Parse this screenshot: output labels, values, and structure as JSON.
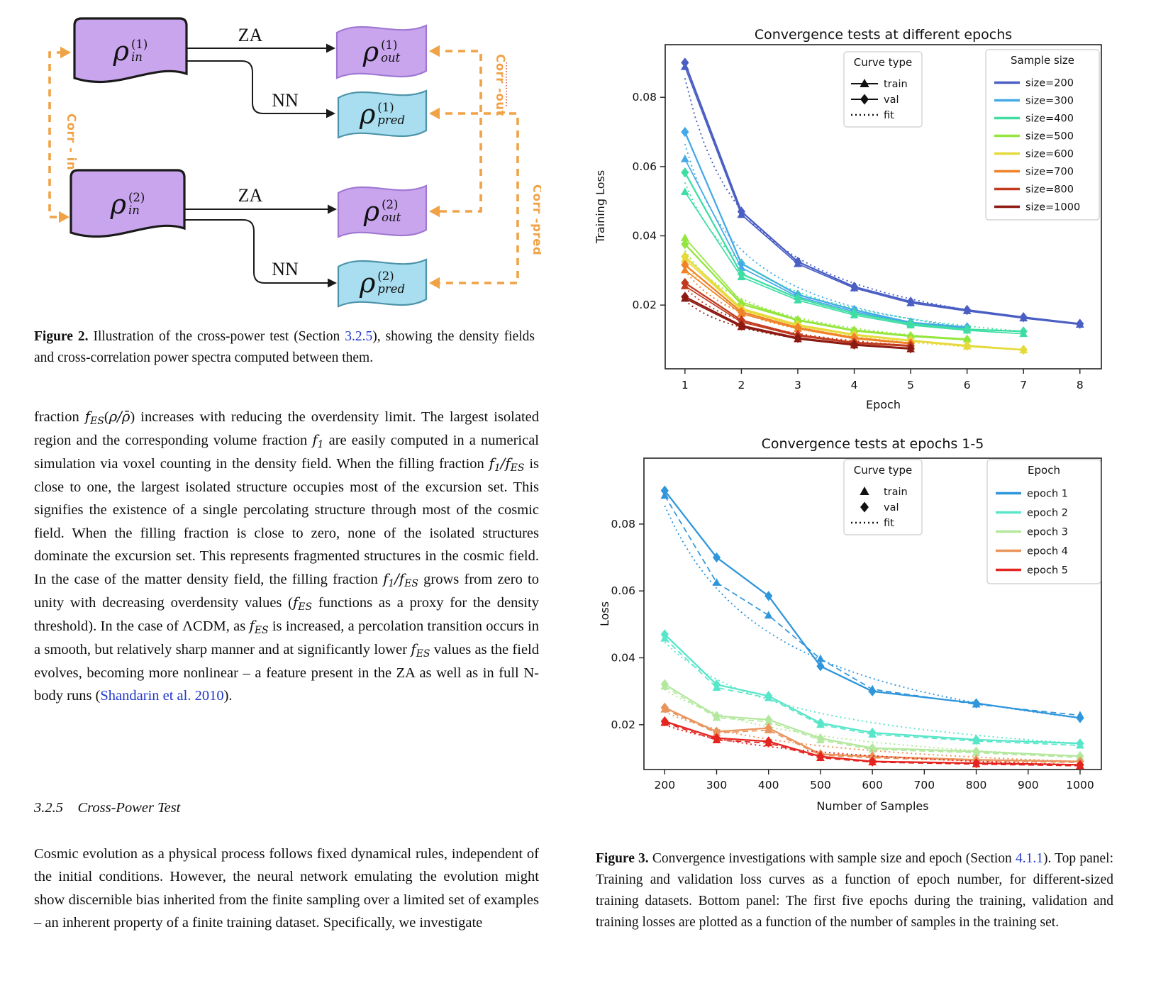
{
  "diagram": {
    "nodes": [
      {
        "id": "in1",
        "base": "ρ",
        "sub": "in",
        "sup": "(1)",
        "kind": "purple-dark"
      },
      {
        "id": "out1",
        "base": "ρ",
        "sub": "out",
        "sup": "(1)",
        "kind": "purple"
      },
      {
        "id": "pred1",
        "base": "ρ",
        "sub": "pred",
        "sup": "(1)",
        "kind": "cyan"
      },
      {
        "id": "in2",
        "base": "ρ",
        "sub": "in",
        "sup": "(2)",
        "kind": "purple-dark"
      },
      {
        "id": "out2",
        "base": "ρ",
        "sub": "out",
        "sup": "(2)",
        "kind": "purple"
      },
      {
        "id": "pred2",
        "base": "ρ",
        "sub": "pred",
        "sup": "(2)",
        "kind": "cyan"
      }
    ],
    "edge_labels": [
      "ZA",
      "NN",
      "ZA",
      "NN"
    ],
    "corr_in": "Corr - in",
    "corr_out": "Corr -out",
    "corr_pred": "Corr -pred",
    "colors": {
      "purple_fill": "#c9a5ee",
      "purple_stroke": "#9f78d2",
      "cyan_fill": "#a8def0",
      "cyan_stroke": "#4d93aa",
      "arrow_black": "#1a1a1a",
      "orange": "#f0a246",
      "red_dots": "#cc3322"
    }
  },
  "figure2_caption_runs": [
    {
      "t": "Figure 2.",
      "b": true
    },
    {
      "t": " Illustration of the cross-power test (Section "
    },
    {
      "t": "3.2.5",
      "link": true
    },
    {
      "t": "), showing the density fields and cross-correlation power spectra computed between them."
    }
  ],
  "para1_runs": [
    {
      "t": "fraction "
    },
    {
      "t": "f",
      "i": true
    },
    {
      "t": "ES",
      "sub": true
    },
    {
      "t": "("
    },
    {
      "t": "ρ/ρ̄",
      "i": true
    },
    {
      "t": ") increases with reducing the overdensity limit. The largest isolated region and the corresponding volume fraction "
    },
    {
      "t": "f",
      "i": true
    },
    {
      "t": "1",
      "sub": true
    },
    {
      "t": " are easily computed in a numerical simulation via voxel counting in the density field. When the filling fraction "
    },
    {
      "t": "f",
      "i": true
    },
    {
      "t": "1",
      "sub": true
    },
    {
      "t": "/",
      "i": true
    },
    {
      "t": "f",
      "i": true
    },
    {
      "t": "ES",
      "sub": true
    },
    {
      "t": " is close to one, the largest isolated structure occupies most of the excursion set. This signifies the existence of a single percolating structure through most of the cosmic field. When the filling fraction is close to zero, none of the isolated structures dominate the excursion set. This represents fragmented structures in the cosmic field. In the case of the matter density field, the filling fraction "
    },
    {
      "t": "f",
      "i": true
    },
    {
      "t": "1",
      "sub": true
    },
    {
      "t": "/",
      "i": true
    },
    {
      "t": "f",
      "i": true
    },
    {
      "t": "ES",
      "sub": true
    },
    {
      "t": " grows from zero to unity with decreasing overdensity values ("
    },
    {
      "t": "f",
      "i": true
    },
    {
      "t": "ES",
      "sub": true
    },
    {
      "t": " functions as a proxy for the density threshold). In the case of ΛCDM, as "
    },
    {
      "t": "f",
      "i": true
    },
    {
      "t": "ES",
      "sub": true
    },
    {
      "t": " is increased, a percolation transition occurs in a smooth, but relatively sharp manner and at significantly lower "
    },
    {
      "t": "f",
      "i": true
    },
    {
      "t": "ES",
      "sub": true
    },
    {
      "t": " values as the field evolves, becoming more nonlinear – a feature present in the ZA as well as in full N-body runs ("
    },
    {
      "t": "Shandarin et al. 2010",
      "link": true
    },
    {
      "t": ")."
    }
  ],
  "section_heading": "3.2.5  Cross-Power Test",
  "para2_runs": [
    {
      "t": "Cosmic evolution as a physical process follows fixed dynamical rules, independent of the initial conditions. However, the neural network emulating the evolution might show discernible bias inherited from the finite sampling over a limited set of examples – an inherent property of a finite training dataset. Specifically, we investigate"
    }
  ],
  "figure3_caption_runs": [
    {
      "t": "Figure 3.",
      "b": true
    },
    {
      "t": " Convergence investigations with sample size and epoch (Section "
    },
    {
      "t": "4.1.1",
      "link": true
    },
    {
      "t": "). Top panel: Training and validation loss curves as a function of epoch number, for different-sized training datasets. Bottom panel: The first five epochs during the training, validation and training losses are plotted as a function of the number of samples in the training set."
    }
  ],
  "chart_data": [
    {
      "type": "line",
      "title": "Convergence tests at different epochs",
      "xlabel": "Epoch",
      "ylabel": "Training Loss",
      "xticks": [
        1,
        2,
        3,
        4,
        5,
        6,
        7,
        8
      ],
      "yticks": [
        0.02,
        0.04,
        0.06,
        0.08
      ],
      "xlim": [
        0.65,
        8.38
      ],
      "ylim": [
        0.0016,
        0.0952
      ],
      "grid": false,
      "train_dashed": false,
      "legend_curve_title": "Curve type",
      "legend_curve_items": [
        {
          "label": "train",
          "swatch": "marker-line",
          "marker": "triangle"
        },
        {
          "label": "val",
          "swatch": "marker-line",
          "marker": "diamond"
        },
        {
          "label": "fit",
          "swatch": "dotted"
        }
      ],
      "legend_group_title": "Sample size",
      "series": [
        {
          "name": "size=200",
          "color": "#4a5ec4",
          "x": [
            1,
            2,
            3,
            4,
            5,
            6,
            7,
            8
          ],
          "val": [
            0.09,
            0.047,
            0.0325,
            0.0253,
            0.021,
            0.0186,
            0.0165,
            0.0146
          ],
          "train": [
            0.0888,
            0.0461,
            0.0319,
            0.0249,
            0.0206,
            0.0183,
            0.0162,
            0.0144
          ]
        },
        {
          "name": "size=300",
          "color": "#45a9e8",
          "x": [
            1,
            2,
            3,
            4,
            5,
            6
          ],
          "val": [
            0.07,
            0.032,
            0.023,
            0.0186,
            0.015,
            0.0136
          ],
          "train": [
            0.0622,
            0.0308,
            0.0224,
            0.0181,
            0.0147,
            0.0133
          ]
        },
        {
          "name": "size=400",
          "color": "#3edda4",
          "x": [
            1,
            2,
            3,
            4,
            5,
            6,
            7
          ],
          "val": [
            0.0583,
            0.029,
            0.022,
            0.0176,
            0.0146,
            0.013,
            0.0124
          ],
          "train": [
            0.0527,
            0.0281,
            0.0214,
            0.0171,
            0.0142,
            0.0127,
            0.0117
          ]
        },
        {
          "name": "size=500",
          "color": "#93e63c",
          "x": [
            1,
            2,
            3,
            4,
            5,
            6
          ],
          "val": [
            0.0376,
            0.0203,
            0.0156,
            0.0126,
            0.011,
            0.01
          ],
          "train": [
            0.0394,
            0.0209,
            0.0158,
            0.0128,
            0.0112,
            0.0102
          ]
        },
        {
          "name": "size=600",
          "color": "#e6d93a",
          "x": [
            1,
            2,
            3,
            4,
            5,
            6,
            7
          ],
          "val": [
            0.034,
            0.019,
            0.0143,
            0.0115,
            0.0098,
            0.0083,
            0.0071
          ],
          "train": [
            0.0332,
            0.0186,
            0.014,
            0.0113,
            0.0096,
            0.0081,
            0.007
          ]
        },
        {
          "name": "size=700",
          "color": "#f08228",
          "x": [
            1,
            2,
            3,
            4,
            5
          ],
          "val": [
            0.0316,
            0.018,
            0.0135,
            0.0106,
            0.009
          ],
          "train": [
            0.0301,
            0.0175,
            0.0132,
            0.0103,
            0.0088
          ]
        },
        {
          "name": "size=800",
          "color": "#c13a1e",
          "x": [
            1,
            2,
            3,
            4,
            5
          ],
          "val": [
            0.0264,
            0.0156,
            0.0114,
            0.0092,
            0.0083
          ],
          "train": [
            0.0255,
            0.0151,
            0.0111,
            0.009,
            0.0081
          ]
        },
        {
          "name": "size=1000",
          "color": "#8c1a11",
          "x": [
            1,
            2,
            3,
            4,
            5
          ],
          "val": [
            0.0224,
            0.0141,
            0.0105,
            0.0086,
            0.0075
          ],
          "train": [
            0.0219,
            0.0137,
            0.0102,
            0.0084,
            0.0073
          ]
        }
      ]
    },
    {
      "type": "line",
      "title": "Convergence tests at epochs 1-5",
      "xlabel": "Number of Samples",
      "ylabel": "Loss",
      "xticks": [
        200,
        300,
        400,
        500,
        600,
        700,
        800,
        900,
        1000
      ],
      "yticks": [
        0.02,
        0.04,
        0.06,
        0.08
      ],
      "xlim": [
        160,
        1041
      ],
      "ylim": [
        0.0066,
        0.0997
      ],
      "grid": false,
      "train_dashed": true,
      "legend_curve_title": "Curve type",
      "legend_curve_items": [
        {
          "label": "train",
          "swatch": "marker",
          "marker": "triangle"
        },
        {
          "label": "val",
          "swatch": "marker",
          "marker": "diamond"
        },
        {
          "label": "fit",
          "swatch": "dotted"
        }
      ],
      "legend_group_title": "Epoch",
      "series": [
        {
          "name": "epoch 1",
          "color": "#2f96dc",
          "x": [
            200,
            300,
            400,
            500,
            600,
            800,
            1000
          ],
          "val": [
            0.09,
            0.07,
            0.0585,
            0.0375,
            0.03,
            0.0264,
            0.022
          ],
          "train": [
            0.0885,
            0.0625,
            0.0527,
            0.0397,
            0.0306,
            0.0261,
            0.0228
          ]
        },
        {
          "name": "epoch 2",
          "color": "#57e6c9",
          "x": [
            200,
            300,
            400,
            500,
            600,
            800,
            1000
          ],
          "val": [
            0.047,
            0.032,
            0.0286,
            0.0205,
            0.0176,
            0.0155,
            0.0144
          ],
          "train": [
            0.0458,
            0.0311,
            0.028,
            0.02,
            0.0171,
            0.0151,
            0.0138
          ]
        },
        {
          "name": "epoch 3",
          "color": "#b3e89e",
          "x": [
            200,
            300,
            400,
            500,
            600,
            800,
            1000
          ],
          "val": [
            0.0321,
            0.0226,
            0.0215,
            0.0159,
            0.013,
            0.012,
            0.0106
          ],
          "train": [
            0.0314,
            0.0221,
            0.0209,
            0.0154,
            0.0126,
            0.0116,
            0.0102
          ]
        },
        {
          "name": "epoch 4",
          "color": "#e9945c",
          "x": [
            200,
            300,
            400,
            500,
            600,
            800,
            1000
          ],
          "val": [
            0.0251,
            0.0179,
            0.019,
            0.0112,
            0.0105,
            0.0095,
            0.009
          ],
          "train": [
            0.0246,
            0.0175,
            0.0184,
            0.0109,
            0.0101,
            0.0092,
            0.0087
          ]
        },
        {
          "name": "epoch 5",
          "color": "#e3241f",
          "x": [
            200,
            300,
            400,
            500,
            600,
            800,
            1000
          ],
          "val": [
            0.021,
            0.016,
            0.015,
            0.0105,
            0.009,
            0.0085,
            0.008
          ],
          "train": [
            0.0206,
            0.0154,
            0.0145,
            0.0101,
            0.0088,
            0.0082,
            0.0077
          ]
        }
      ]
    }
  ]
}
